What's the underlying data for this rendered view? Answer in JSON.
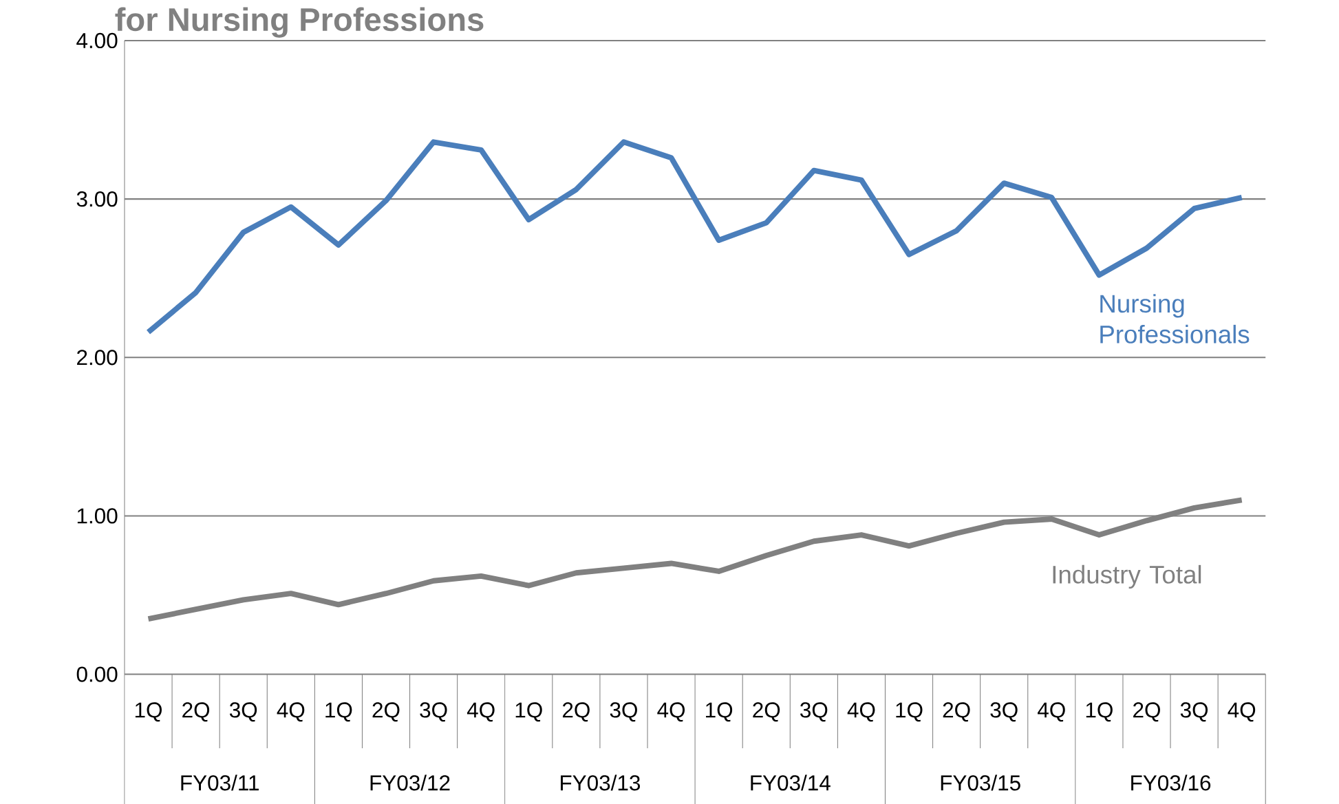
{
  "chart_data": {
    "type": "line",
    "title": "for Nursing Professions",
    "categories": [
      "1Q",
      "2Q",
      "3Q",
      "4Q",
      "1Q",
      "2Q",
      "3Q",
      "4Q",
      "1Q",
      "2Q",
      "3Q",
      "4Q",
      "1Q",
      "2Q",
      "3Q",
      "4Q",
      "1Q",
      "2Q",
      "3Q",
      "4Q",
      "1Q",
      "2Q",
      "3Q",
      "4Q"
    ],
    "series": [
      {
        "name": "Nursing Professionals",
        "color": "#4a7ebb",
        "values": [
          2.16,
          2.41,
          2.79,
          2.95,
          2.71,
          2.99,
          3.36,
          3.31,
          2.87,
          3.06,
          3.36,
          3.26,
          2.74,
          2.85,
          3.18,
          3.12,
          2.65,
          2.8,
          3.1,
          3.01,
          2.52,
          2.69,
          2.94,
          3.01
        ]
      },
      {
        "name": "Industry Total",
        "color": "#808080",
        "values": [
          0.35,
          0.41,
          0.47,
          0.51,
          0.44,
          0.51,
          0.59,
          0.62,
          0.56,
          0.64,
          0.67,
          0.7,
          0.65,
          0.75,
          0.84,
          0.88,
          0.81,
          0.89,
          0.96,
          0.98,
          0.88,
          0.97,
          1.05,
          1.1
        ]
      }
    ],
    "annotations": [
      "FY03/11",
      "FY03/12",
      "FY03/13",
      "FY03/14",
      "FY03/15",
      "FY03/16"
    ],
    "ylim": [
      0,
      4
    ],
    "yticks": [
      {
        "value": 0,
        "label": "0.00"
      },
      {
        "value": 1,
        "label": "1.00"
      },
      {
        "value": 2,
        "label": "2.00"
      },
      {
        "value": 3,
        "label": "3.00"
      },
      {
        "value": 4,
        "label": "4.00"
      }
    ],
    "grid": "y",
    "legend": false,
    "line_style": "solid",
    "marker": "none"
  }
}
